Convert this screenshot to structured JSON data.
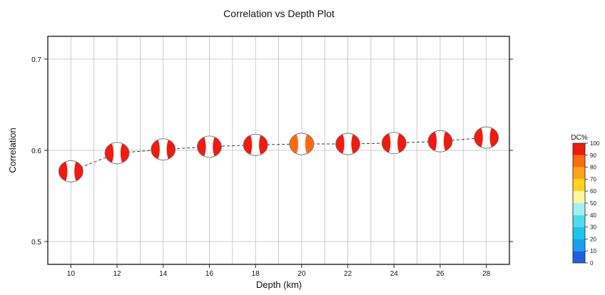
{
  "chart_data": {
    "type": "scatter",
    "title": "Correlation vs Depth Plot",
    "xlabel": "Depth (km)",
    "ylabel": "Correlation",
    "x": [
      10,
      12,
      14,
      16,
      18,
      20,
      22,
      24,
      26,
      28
    ],
    "y": [
      0.577,
      0.597,
      0.601,
      0.604,
      0.606,
      0.607,
      0.607,
      0.608,
      0.61,
      0.614
    ],
    "dc_percent": [
      100,
      100,
      100,
      100,
      100,
      85,
      100,
      100,
      100,
      100
    ],
    "xlim": [
      9,
      29
    ],
    "ylim": [
      0.475,
      0.725
    ],
    "x_ticks": [
      "10",
      "12",
      "14",
      "16",
      "18",
      "20",
      "22",
      "24",
      "26",
      "28"
    ],
    "y_ticks": [
      "0.5",
      "0.6",
      "0.7"
    ],
    "y_tick_values": [
      0.5,
      0.6,
      0.7
    ],
    "grid": true,
    "connecting_line": "dashed",
    "marker": "beachball",
    "colorbar": {
      "label": "DC%",
      "placement": "right",
      "ticks": [
        "0",
        "10",
        "20",
        "30",
        "40",
        "50",
        "60",
        "70",
        "80",
        "90",
        "100"
      ],
      "colors": [
        "#1f5fe0",
        "#18a0ec",
        "#1cc6e8",
        "#4fdcec",
        "#a6eef6",
        "#fff7a0",
        "#ffd21c",
        "#ffa31a",
        "#ff6a10",
        "#ee1b10"
      ]
    }
  }
}
